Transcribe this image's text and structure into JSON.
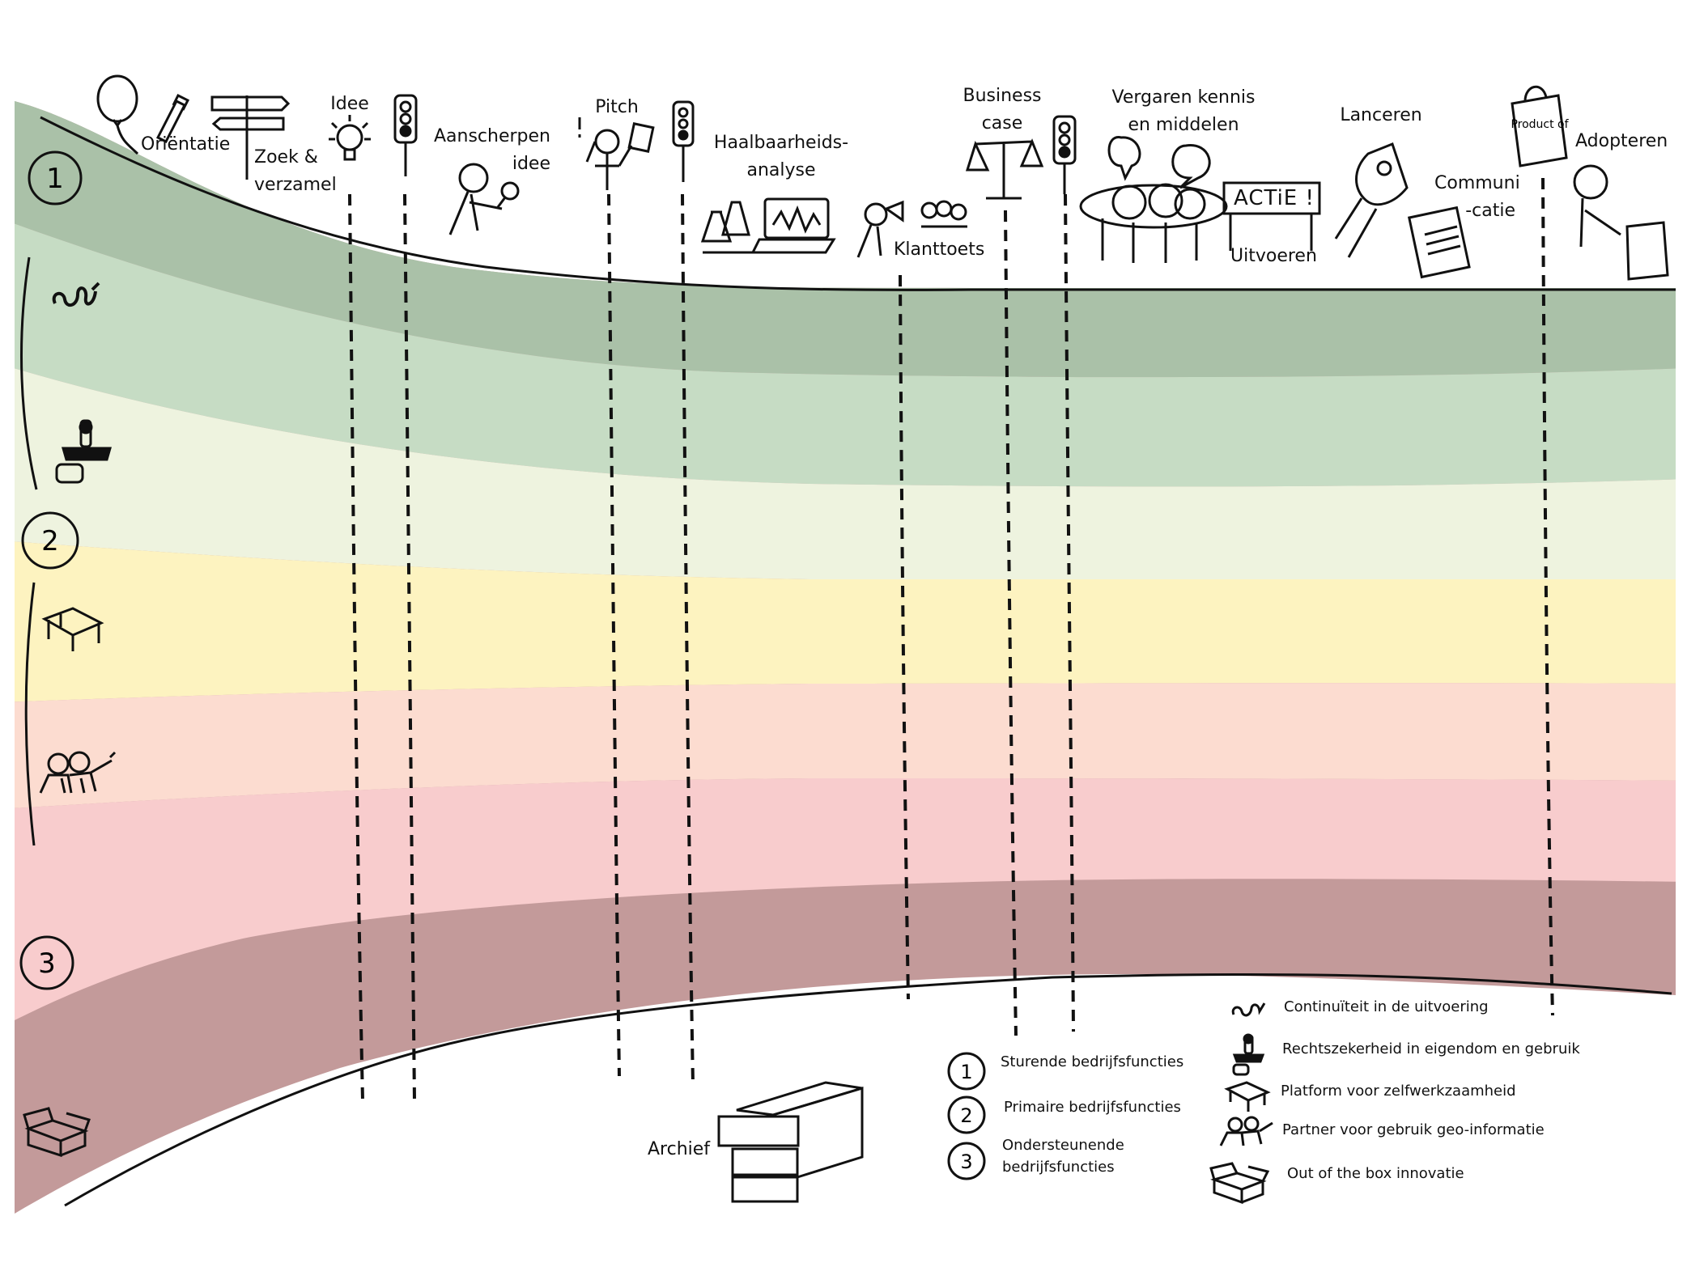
{
  "stages": [
    {
      "id": "orientatie",
      "label": "Oriëntatie"
    },
    {
      "id": "zoek",
      "label": "Zoek & verzamel"
    },
    {
      "id": "idee",
      "label": "Idee"
    },
    {
      "id": "aanscherpen",
      "label": "Aanscherpen idee"
    },
    {
      "id": "pitch",
      "label": "Pitch"
    },
    {
      "id": "haalbaarheid",
      "label": "Haalbaarheids-analyse"
    },
    {
      "id": "klanttoets",
      "label": "Klanttoets"
    },
    {
      "id": "business",
      "label": "Business case"
    },
    {
      "id": "vergaren",
      "label": "Vergaren kennis en middelen"
    },
    {
      "id": "uitvoeren",
      "label": "Uitvoeren"
    },
    {
      "id": "lanceren",
      "label": "Lanceren"
    },
    {
      "id": "communicatie",
      "label": "Communi -catie"
    },
    {
      "id": "adopteren",
      "label": "Adopteren"
    }
  ],
  "sign_text": "ACTiE !",
  "archive_label": "Archief",
  "band_numbers": [
    "1",
    "2",
    "3"
  ],
  "levels_legend": [
    {
      "number": "1",
      "label": "Sturende bedrijfsfuncties"
    },
    {
      "number": "2",
      "label": "Primaire bedrijfsfuncties"
    },
    {
      "number": "3",
      "label": "Ondersteunende bedrijfsfuncties"
    }
  ],
  "icons_legend": [
    {
      "icon": "continuity-squiggle-icon",
      "label": "Continuïteit in de uitvoering"
    },
    {
      "icon": "stamp-icon",
      "label": "Rechtszekerheid in eigendom en gebruik"
    },
    {
      "icon": "platform-table-icon",
      "label": "Platform voor zelfwerkzaamheid"
    },
    {
      "icon": "partners-icon",
      "label": "Partner voor gebruik geo-informatie"
    },
    {
      "icon": "open-box-icon",
      "label": "Out of the box innovatie"
    }
  ],
  "product_bag_text": "Product of",
  "bands": [
    {
      "name": "sturend-dark",
      "color": "#aac1a8"
    },
    {
      "name": "sturend-light",
      "color": "#c6dcc4"
    },
    {
      "name": "primair-pale",
      "color": "#eef3df"
    },
    {
      "name": "primair-yellow",
      "color": "#fdf3c0"
    },
    {
      "name": "primair-peach",
      "color": "#fcdcd0"
    },
    {
      "name": "ondersteunend-pink",
      "color": "#f8cccd"
    },
    {
      "name": "ondersteunend-mauve",
      "color": "#c39a9a"
    }
  ]
}
